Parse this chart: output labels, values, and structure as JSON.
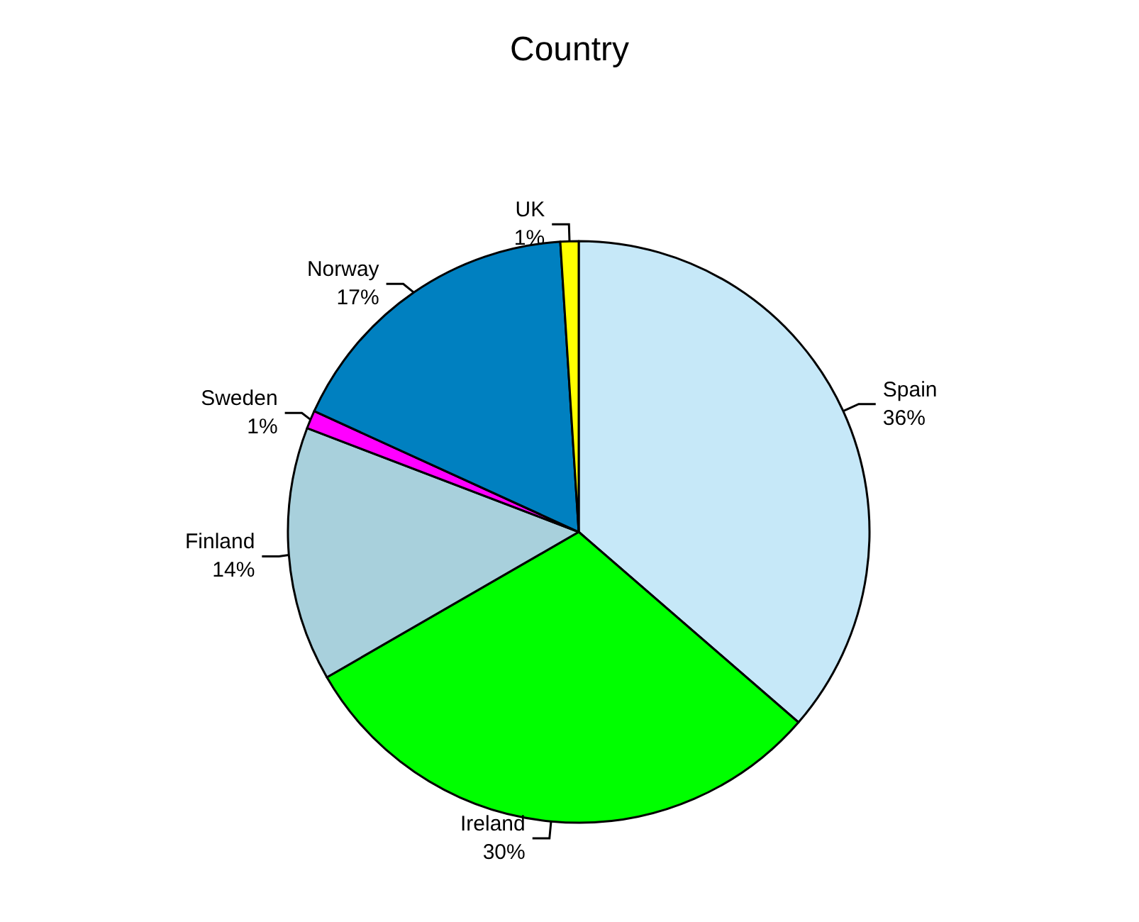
{
  "chart_data": {
    "type": "pie",
    "title": "Country",
    "categories": [
      "Spain",
      "Ireland",
      "Finland",
      "Sweden",
      "Norway",
      "UK"
    ],
    "values": [
      36,
      30,
      14,
      1,
      17,
      1
    ],
    "value_labels": [
      "36%",
      "30%",
      "14%",
      "1%",
      "17%",
      "1%"
    ],
    "colors": [
      "#c6e8f8",
      "#00ff00",
      "#a8d0dc",
      "#ff00ff",
      "#0080c0",
      "#ffff00"
    ]
  }
}
